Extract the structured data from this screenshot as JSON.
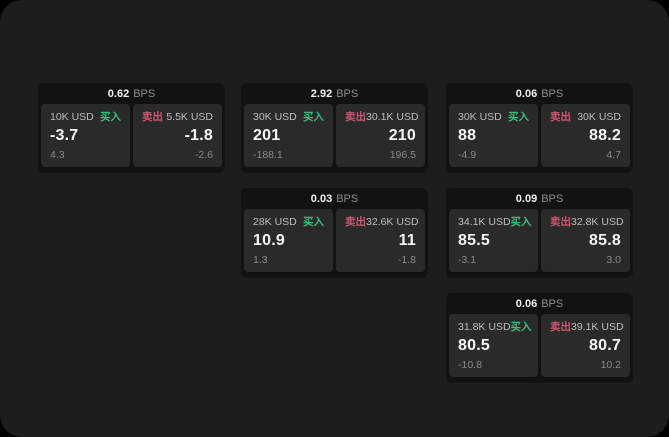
{
  "labels": {
    "bps_unit": "BPS",
    "buy": "买入",
    "sell": "卖出"
  },
  "colors": {
    "buy": "#3dbd7d",
    "sell": "#cf5670",
    "screen_background": "#1d1d1e",
    "card_background": "#121213",
    "panel_background": "#2a2a2b",
    "primary_text": "#f5f5f5",
    "muted_text": "#8a8a8a"
  },
  "cards": [
    {
      "row": 1,
      "col": 1,
      "bps": "0.62",
      "buy_amount": "10K USD",
      "sell_amount": "5.5K USD",
      "buy_value": "-3.7",
      "sell_value": "-1.8",
      "buy_delta": "4.3",
      "sell_delta": "-2.6"
    },
    {
      "row": 1,
      "col": 2,
      "bps": "2.92",
      "buy_amount": "30K USD",
      "sell_amount": "30.1K USD",
      "buy_value": "201",
      "sell_value": "210",
      "buy_delta": "-188.1",
      "sell_delta": "196.5"
    },
    {
      "row": 1,
      "col": 3,
      "bps": "0.06",
      "buy_amount": "30K USD",
      "sell_amount": "30K USD",
      "buy_value": "88",
      "sell_value": "88.2",
      "buy_delta": "-4.9",
      "sell_delta": "4.7"
    },
    {
      "row": 2,
      "col": 2,
      "bps": "0.03",
      "buy_amount": "28K USD",
      "sell_amount": "32.6K USD",
      "buy_value": "10.9",
      "sell_value": "11",
      "buy_delta": "1.3",
      "sell_delta": "-1.8"
    },
    {
      "row": 2,
      "col": 3,
      "bps": "0.09",
      "buy_amount": "34.1K USD",
      "sell_amount": "32.8K USD",
      "buy_value": "85.5",
      "sell_value": "85.8",
      "buy_delta": "-3.1",
      "sell_delta": "3.0"
    },
    {
      "row": 3,
      "col": 3,
      "bps": "0.06",
      "buy_amount": "31.8K USD",
      "sell_amount": "39.1K USD",
      "buy_value": "80.5",
      "sell_value": "80.7",
      "buy_delta": "-10.8",
      "sell_delta": "10.2"
    }
  ]
}
